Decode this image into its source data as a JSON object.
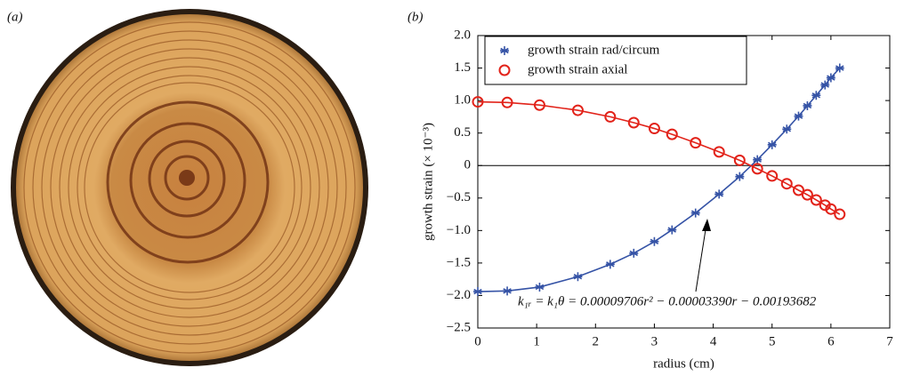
{
  "panels": {
    "a": "(a)",
    "b": "(b)"
  },
  "chart_data": {
    "type": "line",
    "xlabel": "radius (cm)",
    "ylabel": "growth strain (× 10⁻³)",
    "xlim": [
      0,
      7
    ],
    "xticks": [
      0,
      1,
      2,
      3,
      4,
      5,
      6,
      7
    ],
    "ylim": [
      -2.5,
      2.0
    ],
    "yticks": [
      {
        "value": -2.5,
        "label": "−2.5"
      },
      {
        "value": -2.0,
        "label": "−2.0"
      },
      {
        "value": -1.5,
        "label": "−1.5"
      },
      {
        "value": -1.0,
        "label": "−1.0"
      },
      {
        "value": -0.5,
        "label": "−0.5"
      },
      0,
      {
        "value": 0.5,
        "label": "0.5"
      },
      {
        "value": 1.0,
        "label": "1.0"
      },
      {
        "value": 1.5,
        "label": "1.5"
      },
      {
        "value": 2.0,
        "label": "2.0"
      }
    ],
    "hlines": [
      0
    ],
    "legend": "upper left",
    "x": [
      0,
      0.5,
      1.05,
      1.7,
      2.25,
      2.65,
      3.0,
      3.3,
      3.7,
      4.1,
      4.45,
      4.75,
      5.0,
      5.25,
      5.45,
      5.6,
      5.75,
      5.9,
      6.0,
      6.15
    ],
    "series": [
      {
        "name": "growth strain rad/circum",
        "color": "#3553a6",
        "marker": "star",
        "values": [
          -1.94,
          -1.93,
          -1.87,
          -1.71,
          -1.52,
          -1.35,
          -1.17,
          -0.99,
          -0.73,
          -0.44,
          -0.17,
          0.09,
          0.32,
          0.56,
          0.76,
          0.92,
          1.08,
          1.24,
          1.35,
          1.5
        ]
      },
      {
        "name": "growth strain axial",
        "color": "#e2231a",
        "marker": "circle",
        "values": [
          0.98,
          0.97,
          0.93,
          0.85,
          0.75,
          0.66,
          0.57,
          0.48,
          0.35,
          0.21,
          0.08,
          -0.05,
          -0.16,
          -0.28,
          -0.38,
          -0.45,
          -0.53,
          -0.61,
          -0.67,
          -0.75
        ]
      }
    ],
    "annotation": "k₁ᵣ = k₁θ = 0.00009706r² − 0.00003390r − 0.00193682"
  }
}
